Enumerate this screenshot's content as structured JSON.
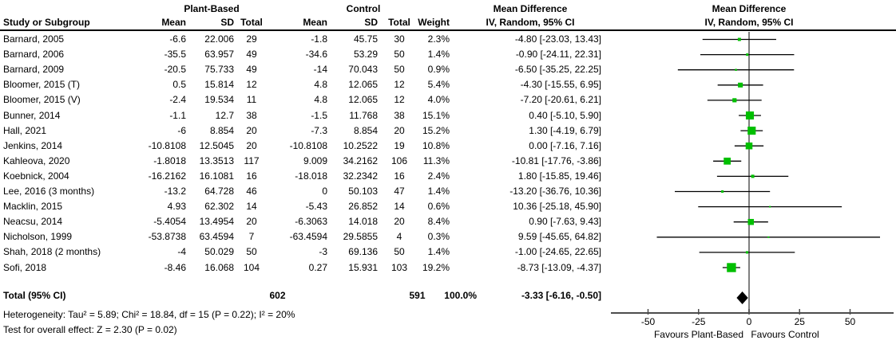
{
  "header": {
    "group1_label": "Plant-Based",
    "group2_label": "Control",
    "col_study": "Study or Subgroup",
    "col_mean": "Mean",
    "col_sd": "SD",
    "col_total": "Total",
    "col_weight": "Weight",
    "md_col_title": "Mean Difference",
    "md_col_sub": "IV, Random, 95% CI",
    "plot_title": "Mean Difference",
    "plot_sub": "IV, Random, 95% CI"
  },
  "total_row": {
    "label": "Total (95% CI)",
    "plant_total": "602",
    "control_total": "591",
    "weight": "100.0%",
    "md_text": "-3.33 [-6.16, -0.50]"
  },
  "footnotes": {
    "heterogeneity": "Heterogeneity: Tau² = 5.89; Chi² = 18.84, df = 15 (P = 0.22); I² = 20%",
    "overall_effect": "Test for overall effect: Z = 2.30 (P = 0.02)"
  },
  "chart_data": {
    "type": "forest",
    "title": "Mean Difference, IV, Random, 95% CI",
    "x_axis": {
      "ticks": [
        -50,
        -25,
        0,
        25,
        50
      ],
      "range": [
        -68,
        72
      ],
      "favours_left": "Favours Plant-Based",
      "favours_right": "Favours Control",
      "grid": false
    },
    "colors": {
      "marker": "#00bf00",
      "ci_line": "#000000",
      "summary_diamond": "#000000",
      "zero_line": "#808080",
      "axis_line": "#4d4d4d"
    },
    "studies": [
      {
        "label": "Barnard, 2005",
        "p_mean": "-6.6",
        "p_sd": "22.006",
        "p_total": "29",
        "c_mean": "-1.8",
        "c_sd": "45.75",
        "c_total": "30",
        "weight": "2.3%",
        "weight_pct": 2.3,
        "md_text": "-4.80 [-23.03, 13.43]",
        "md": -4.8,
        "lo": -23.03,
        "hi": 13.43
      },
      {
        "label": "Barnard, 2006",
        "p_mean": "-35.5",
        "p_sd": "63.957",
        "p_total": "49",
        "c_mean": "-34.6",
        "c_sd": "53.29",
        "c_total": "50",
        "weight": "1.4%",
        "weight_pct": 1.4,
        "md_text": "-0.90 [-24.11, 22.31]",
        "md": -0.9,
        "lo": -24.11,
        "hi": 22.31
      },
      {
        "label": "Barnard, 2009",
        "p_mean": "-20.5",
        "p_sd": "75.733",
        "p_total": "49",
        "c_mean": "-14",
        "c_sd": "70.043",
        "c_total": "50",
        "weight": "0.9%",
        "weight_pct": 0.9,
        "md_text": "-6.50 [-35.25, 22.25]",
        "md": -6.5,
        "lo": -35.25,
        "hi": 22.25
      },
      {
        "label": "Bloomer, 2015 (T)",
        "p_mean": "0.5",
        "p_sd": "15.814",
        "p_total": "12",
        "c_mean": "4.8",
        "c_sd": "12.065",
        "c_total": "12",
        "weight": "5.4%",
        "weight_pct": 5.4,
        "md_text": "-4.30 [-15.55, 6.95]",
        "md": -4.3,
        "lo": -15.55,
        "hi": 6.95
      },
      {
        "label": "Bloomer, 2015 (V)",
        "p_mean": "-2.4",
        "p_sd": "19.534",
        "p_total": "11",
        "c_mean": "4.8",
        "c_sd": "12.065",
        "c_total": "12",
        "weight": "4.0%",
        "weight_pct": 4.0,
        "md_text": "-7.20 [-20.61, 6.21]",
        "md": -7.2,
        "lo": -20.61,
        "hi": 6.21
      },
      {
        "label": "Bunner, 2014",
        "p_mean": "-1.1",
        "p_sd": "12.7",
        "p_total": "38",
        "c_mean": "-1.5",
        "c_sd": "11.768",
        "c_total": "38",
        "weight": "15.1%",
        "weight_pct": 15.1,
        "md_text": "0.40 [-5.10, 5.90]",
        "md": 0.4,
        "lo": -5.1,
        "hi": 5.9
      },
      {
        "label": "Hall, 2021",
        "p_mean": "-6",
        "p_sd": "8.854",
        "p_total": "20",
        "c_mean": "-7.3",
        "c_sd": "8.854",
        "c_total": "20",
        "weight": "15.2%",
        "weight_pct": 15.2,
        "md_text": "1.30 [-4.19, 6.79]",
        "md": 1.3,
        "lo": -4.19,
        "hi": 6.79
      },
      {
        "label": "Jenkins, 2014",
        "p_mean": "-10.8108",
        "p_sd": "12.5045",
        "p_total": "20",
        "c_mean": "-10.8108",
        "c_sd": "10.2522",
        "c_total": "19",
        "weight": "10.8%",
        "weight_pct": 10.8,
        "md_text": "0.00 [-7.16, 7.16]",
        "md": 0.0,
        "lo": -7.16,
        "hi": 7.16
      },
      {
        "label": "Kahleova, 2020",
        "p_mean": "-1.8018",
        "p_sd": "13.3513",
        "p_total": "117",
        "c_mean": "9.009",
        "c_sd": "34.2162",
        "c_total": "106",
        "weight": "11.3%",
        "weight_pct": 11.3,
        "md_text": "-10.81 [-17.76, -3.86]",
        "md": -10.81,
        "lo": -17.76,
        "hi": -3.86
      },
      {
        "label": "Koebnick, 2004",
        "p_mean": "-16.2162",
        "p_sd": "16.1081",
        "p_total": "16",
        "c_mean": "-18.018",
        "c_sd": "32.2342",
        "c_total": "16",
        "weight": "2.4%",
        "weight_pct": 2.4,
        "md_text": "1.80 [-15.85, 19.46]",
        "md": 1.8,
        "lo": -15.85,
        "hi": 19.46
      },
      {
        "label": "Lee, 2016 (3 months)",
        "p_mean": "-13.2",
        "p_sd": "64.728",
        "p_total": "46",
        "c_mean": "0",
        "c_sd": "50.103",
        "c_total": "47",
        "weight": "1.4%",
        "weight_pct": 1.4,
        "md_text": "-13.20 [-36.76, 10.36]",
        "md": -13.2,
        "lo": -36.76,
        "hi": 10.36
      },
      {
        "label": "Macklin, 2015",
        "p_mean": "4.93",
        "p_sd": "62.302",
        "p_total": "14",
        "c_mean": "-5.43",
        "c_sd": "26.852",
        "c_total": "14",
        "weight": "0.6%",
        "weight_pct": 0.6,
        "md_text": "10.36 [-25.18, 45.90]",
        "md": 10.36,
        "lo": -25.18,
        "hi": 45.9
      },
      {
        "label": "Neacsu, 2014",
        "p_mean": "-5.4054",
        "p_sd": "13.4954",
        "p_total": "20",
        "c_mean": "-6.3063",
        "c_sd": "14.018",
        "c_total": "20",
        "weight": "8.4%",
        "weight_pct": 8.4,
        "md_text": "0.90 [-7.63, 9.43]",
        "md": 0.9,
        "lo": -7.63,
        "hi": 9.43
      },
      {
        "label": "Nicholson, 1999",
        "p_mean": "-53.8738",
        "p_sd": "63.4594",
        "p_total": "7",
        "c_mean": "-63.4594",
        "c_sd": "29.5855",
        "c_total": "4",
        "weight": "0.3%",
        "weight_pct": 0.3,
        "md_text": "9.59 [-45.65, 64.82]",
        "md": 9.59,
        "lo": -45.65,
        "hi": 64.82
      },
      {
        "label": "Shah, 2018 (2 months)",
        "p_mean": "-4",
        "p_sd": "50.029",
        "p_total": "50",
        "c_mean": "-3",
        "c_sd": "69.136",
        "c_total": "50",
        "weight": "1.4%",
        "weight_pct": 1.4,
        "md_text": "-1.00 [-24.65, 22.65]",
        "md": -1.0,
        "lo": -24.65,
        "hi": 22.65
      },
      {
        "label": "Sofi, 2018",
        "p_mean": "-8.46",
        "p_sd": "16.068",
        "p_total": "104",
        "c_mean": "0.27",
        "c_sd": "15.931",
        "c_total": "103",
        "weight": "19.2%",
        "weight_pct": 19.2,
        "md_text": "-8.73 [-13.09, -4.37]",
        "md": -8.73,
        "lo": -13.09,
        "hi": -4.37
      }
    ],
    "summary": {
      "md": -3.33,
      "lo": -6.16,
      "hi": -0.5
    }
  }
}
